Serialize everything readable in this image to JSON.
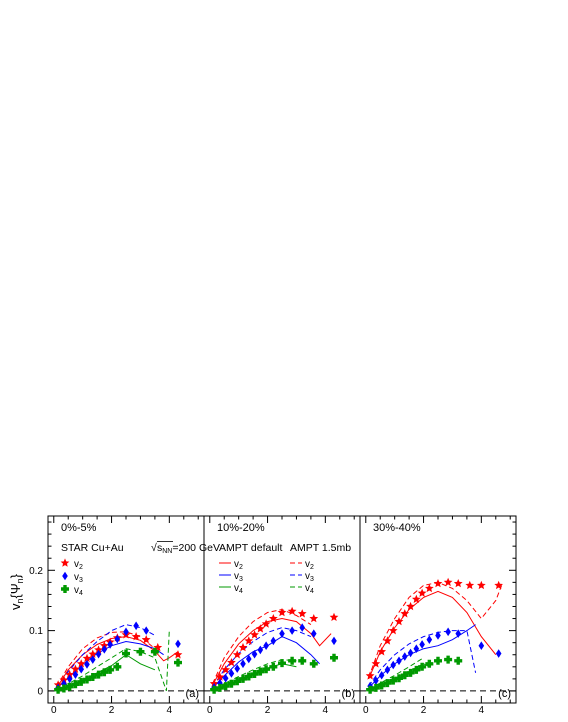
{
  "colors": {
    "v2": "#ff0000",
    "v3": "#0000ff",
    "v4": "#009900",
    "axis": "#000000",
    "ref": "#000000"
  },
  "ylabel_main": "v",
  "ylabel_sub1": "n",
  "ylabel_mid": "{Ψ",
  "ylabel_sub2": "n",
  "ylabel_end": "}",
  "yticks": [
    "0",
    "0.1",
    "0.2"
  ],
  "xticks": [
    "0",
    "2",
    "4"
  ],
  "legend": {
    "star_label": "STAR Cu+Au",
    "energy_label": "=200 GeV",
    "sqrt_s": "s",
    "sqrt_sub": "NN",
    "v_main": "v",
    "sub2": "2",
    "sub3": "3",
    "sub4": "4",
    "ampt_default": "AMPT default",
    "ampt_15": "AMPT 1.5mb"
  },
  "chart_data": [
    {
      "type": "scatter",
      "panel_tag": "(a)",
      "centrality": "0%-5%",
      "xlim": [
        -0.2,
        5.2
      ],
      "ylim": [
        -0.02,
        0.29
      ],
      "grid": false,
      "reference_line": 0,
      "series": [
        {
          "name": "v2",
          "kind": "data",
          "marker": "star",
          "x": [
            0.15,
            0.35,
            0.55,
            0.75,
            0.95,
            1.15,
            1.35,
            1.55,
            1.75,
            1.95,
            2.2,
            2.5,
            2.85,
            3.2,
            3.6,
            4.3
          ],
          "y": [
            0.01,
            0.018,
            0.027,
            0.036,
            0.045,
            0.054,
            0.061,
            0.068,
            0.075,
            0.081,
            0.088,
            0.093,
            0.09,
            0.085,
            0.072,
            0.06
          ]
        },
        {
          "name": "v3",
          "kind": "data",
          "marker": "diamond",
          "x": [
            0.15,
            0.35,
            0.55,
            0.75,
            0.95,
            1.15,
            1.35,
            1.55,
            1.75,
            1.95,
            2.2,
            2.5,
            2.85,
            3.2,
            4.3
          ],
          "y": [
            0.005,
            0.012,
            0.02,
            0.027,
            0.036,
            0.044,
            0.052,
            0.061,
            0.069,
            0.077,
            0.086,
            0.098,
            0.108,
            0.1,
            0.078
          ]
        },
        {
          "name": "v4",
          "kind": "data",
          "marker": "cross",
          "x": [
            0.15,
            0.35,
            0.55,
            0.75,
            0.95,
            1.15,
            1.35,
            1.55,
            1.75,
            1.95,
            2.2,
            2.5,
            3.0,
            3.5,
            4.3
          ],
          "y": [
            0.002,
            0.004,
            0.007,
            0.011,
            0.015,
            0.019,
            0.023,
            0.027,
            0.031,
            0.035,
            0.04,
            0.062,
            0.065,
            0.065,
            0.047
          ]
        },
        {
          "name": "v2",
          "kind": "model",
          "model": "AMPT default",
          "style": "solid",
          "x": [
            0.1,
            0.5,
            1.0,
            1.5,
            2.0,
            2.5,
            3.0,
            3.5,
            3.8,
            4.0,
            4.3
          ],
          "y": [
            0.005,
            0.035,
            0.06,
            0.077,
            0.087,
            0.09,
            0.084,
            0.066,
            0.05,
            0.055,
            0.065
          ]
        },
        {
          "name": "v3",
          "kind": "model",
          "model": "AMPT default",
          "style": "solid",
          "x": [
            0.1,
            0.5,
            1.0,
            1.5,
            2.0,
            2.5,
            3.0,
            3.5,
            3.8
          ],
          "y": [
            0.004,
            0.022,
            0.044,
            0.062,
            0.075,
            0.082,
            0.078,
            0.07,
            0.06
          ]
        },
        {
          "name": "v4",
          "kind": "model",
          "model": "AMPT default",
          "style": "solid",
          "x": [
            0.1,
            0.5,
            1.0,
            1.5,
            2.0,
            2.5,
            3.0,
            3.5
          ],
          "y": [
            0.002,
            0.008,
            0.018,
            0.03,
            0.042,
            0.06,
            0.045,
            0.035
          ]
        },
        {
          "name": "v2",
          "kind": "model",
          "model": "AMPT 1.5mb",
          "style": "dashed",
          "x": [
            0.1,
            0.5,
            1.0,
            1.5,
            2.0,
            2.5,
            3.0,
            3.5
          ],
          "y": [
            0.007,
            0.04,
            0.07,
            0.088,
            0.097,
            0.098,
            0.09,
            0.07
          ]
        },
        {
          "name": "v3",
          "kind": "model",
          "model": "AMPT 1.5mb",
          "style": "dashed",
          "x": [
            0.1,
            0.5,
            1.0,
            1.5,
            2.0,
            2.5,
            3.0,
            3.5
          ],
          "y": [
            0.006,
            0.032,
            0.06,
            0.082,
            0.1,
            0.11,
            0.105,
            0.092
          ]
        },
        {
          "name": "v4",
          "kind": "model",
          "model": "AMPT 1.5mb",
          "style": "dashed",
          "x": [
            0.1,
            0.5,
            1.0,
            1.5,
            2.0,
            2.5,
            3.0,
            3.5,
            3.9,
            4.0
          ],
          "y": [
            0.003,
            0.012,
            0.025,
            0.04,
            0.055,
            0.07,
            0.065,
            0.055,
            0.0,
            0.1
          ]
        }
      ]
    },
    {
      "type": "scatter",
      "panel_tag": "(b)",
      "centrality": "10%-20%",
      "xlim": [
        -0.2,
        5.2
      ],
      "ylim": [
        -0.02,
        0.29
      ],
      "grid": false,
      "reference_line": 0,
      "series": [
        {
          "name": "v2",
          "kind": "data",
          "marker": "star",
          "x": [
            0.15,
            0.35,
            0.55,
            0.75,
            0.95,
            1.15,
            1.35,
            1.55,
            1.75,
            1.95,
            2.2,
            2.5,
            2.85,
            3.2,
            3.6,
            4.3
          ],
          "y": [
            0.012,
            0.023,
            0.035,
            0.047,
            0.06,
            0.072,
            0.083,
            0.093,
            0.103,
            0.111,
            0.12,
            0.13,
            0.132,
            0.128,
            0.12,
            0.122
          ]
        },
        {
          "name": "v3",
          "kind": "data",
          "marker": "diamond",
          "x": [
            0.15,
            0.35,
            0.55,
            0.75,
            0.95,
            1.15,
            1.35,
            1.55,
            1.75,
            1.95,
            2.2,
            2.5,
            2.85,
            3.2,
            3.6,
            4.3
          ],
          "y": [
            0.006,
            0.013,
            0.021,
            0.029,
            0.037,
            0.045,
            0.053,
            0.061,
            0.068,
            0.075,
            0.083,
            0.095,
            0.1,
            0.105,
            0.095,
            0.083
          ]
        },
        {
          "name": "v4",
          "kind": "data",
          "marker": "cross",
          "x": [
            0.15,
            0.35,
            0.55,
            0.75,
            0.95,
            1.15,
            1.35,
            1.55,
            1.75,
            1.95,
            2.2,
            2.5,
            2.85,
            3.2,
            3.6,
            4.3
          ],
          "y": [
            0.002,
            0.005,
            0.008,
            0.012,
            0.016,
            0.02,
            0.024,
            0.028,
            0.032,
            0.036,
            0.04,
            0.046,
            0.05,
            0.05,
            0.045,
            0.055
          ]
        },
        {
          "name": "v2",
          "kind": "model",
          "model": "AMPT default",
          "style": "solid",
          "x": [
            0.1,
            0.5,
            1.0,
            1.5,
            2.0,
            2.5,
            3.0,
            3.5,
            3.8,
            4.2
          ],
          "y": [
            0.01,
            0.045,
            0.078,
            0.1,
            0.115,
            0.12,
            0.115,
            0.095,
            0.075,
            0.095
          ]
        },
        {
          "name": "v3",
          "kind": "model",
          "model": "AMPT default",
          "style": "solid",
          "x": [
            0.1,
            0.5,
            1.0,
            1.5,
            2.0,
            2.5,
            3.0,
            3.5,
            3.8
          ],
          "y": [
            0.005,
            0.025,
            0.048,
            0.065,
            0.075,
            0.09,
            0.08,
            0.06,
            0.045
          ]
        },
        {
          "name": "v4",
          "kind": "model",
          "model": "AMPT default",
          "style": "solid",
          "x": [
            0.1,
            0.5,
            1.0,
            1.5,
            2.0,
            2.5,
            3.0
          ],
          "y": [
            0.002,
            0.008,
            0.018,
            0.028,
            0.038,
            0.045,
            0.04
          ]
        },
        {
          "name": "v2",
          "kind": "model",
          "model": "AMPT 1.5mb",
          "style": "dashed",
          "x": [
            0.1,
            0.5,
            1.0,
            1.5,
            2.0,
            2.5,
            3.0,
            3.5
          ],
          "y": [
            0.012,
            0.055,
            0.09,
            0.115,
            0.13,
            0.135,
            0.125,
            0.11
          ]
        },
        {
          "name": "v3",
          "kind": "model",
          "model": "AMPT 1.5mb",
          "style": "dashed",
          "x": [
            0.1,
            0.5,
            1.0,
            1.5,
            2.0,
            2.5,
            3.0,
            3.5
          ],
          "y": [
            0.007,
            0.035,
            0.062,
            0.082,
            0.097,
            0.105,
            0.1,
            0.09
          ]
        },
        {
          "name": "v4",
          "kind": "model",
          "model": "AMPT 1.5mb",
          "style": "dashed",
          "x": [
            0.1,
            0.5,
            1.0,
            1.5,
            2.0,
            2.5,
            3.0
          ],
          "y": [
            0.003,
            0.012,
            0.024,
            0.035,
            0.045,
            0.052,
            0.05
          ]
        }
      ]
    },
    {
      "type": "scatter",
      "panel_tag": "(c)",
      "centrality": "30%-40%",
      "xlim": [
        -0.2,
        5.2
      ],
      "ylim": [
        -0.02,
        0.29
      ],
      "grid": false,
      "reference_line": 0,
      "series": [
        {
          "name": "v2",
          "kind": "data",
          "marker": "star",
          "x": [
            0.15,
            0.35,
            0.55,
            0.75,
            0.95,
            1.15,
            1.35,
            1.55,
            1.75,
            1.95,
            2.2,
            2.5,
            2.85,
            3.2,
            3.6,
            4.0,
            4.6
          ],
          "y": [
            0.025,
            0.045,
            0.065,
            0.083,
            0.1,
            0.115,
            0.128,
            0.14,
            0.152,
            0.162,
            0.17,
            0.178,
            0.18,
            0.178,
            0.175,
            0.175,
            0.175
          ]
        },
        {
          "name": "v3",
          "kind": "data",
          "marker": "diamond",
          "x": [
            0.15,
            0.35,
            0.55,
            0.75,
            0.95,
            1.15,
            1.35,
            1.55,
            1.75,
            1.95,
            2.2,
            2.5,
            2.85,
            3.2,
            4.0,
            4.6
          ],
          "y": [
            0.008,
            0.017,
            0.026,
            0.035,
            0.043,
            0.05,
            0.057,
            0.063,
            0.07,
            0.077,
            0.085,
            0.092,
            0.098,
            0.095,
            0.075,
            0.062
          ]
        },
        {
          "name": "v4",
          "kind": "data",
          "marker": "cross",
          "x": [
            0.15,
            0.35,
            0.55,
            0.75,
            0.95,
            1.15,
            1.35,
            1.55,
            1.75,
            1.95,
            2.2,
            2.5,
            2.85,
            3.2
          ],
          "y": [
            0.002,
            0.005,
            0.009,
            0.013,
            0.017,
            0.021,
            0.026,
            0.03,
            0.035,
            0.04,
            0.045,
            0.05,
            0.052,
            0.05
          ]
        },
        {
          "name": "v2",
          "kind": "model",
          "model": "AMPT default",
          "style": "solid",
          "x": [
            0.1,
            0.5,
            1.0,
            1.5,
            2.0,
            2.5,
            3.0,
            3.5,
            4.0,
            4.5
          ],
          "y": [
            0.02,
            0.065,
            0.105,
            0.135,
            0.155,
            0.165,
            0.155,
            0.13,
            0.09,
            0.06
          ]
        },
        {
          "name": "v3",
          "kind": "model",
          "model": "AMPT default",
          "style": "solid",
          "x": [
            0.1,
            0.5,
            1.0,
            1.5,
            2.0,
            2.5,
            3.0,
            3.5,
            3.8
          ],
          "y": [
            0.005,
            0.025,
            0.045,
            0.06,
            0.07,
            0.075,
            0.085,
            0.1,
            0.11
          ]
        },
        {
          "name": "v4",
          "kind": "model",
          "model": "AMPT default",
          "style": "solid",
          "x": [
            0.1,
            0.5,
            1.0,
            1.5,
            2.0,
            2.2
          ],
          "y": [
            0.002,
            0.01,
            0.02,
            0.032,
            0.045,
            0.04
          ]
        },
        {
          "name": "v2",
          "kind": "model",
          "model": "AMPT 1.5mb",
          "style": "dashed",
          "x": [
            0.1,
            0.5,
            1.0,
            1.5,
            2.0,
            2.5,
            3.0,
            3.5,
            4.0,
            4.5,
            4.7
          ],
          "y": [
            0.022,
            0.075,
            0.12,
            0.155,
            0.175,
            0.18,
            0.17,
            0.15,
            0.12,
            0.15,
            0.175
          ]
        },
        {
          "name": "v3",
          "kind": "model",
          "model": "AMPT 1.5mb",
          "style": "dashed",
          "x": [
            0.1,
            0.5,
            1.0,
            1.5,
            2.0,
            2.5,
            3.0,
            3.5,
            3.8
          ],
          "y": [
            0.008,
            0.035,
            0.06,
            0.078,
            0.09,
            0.097,
            0.1,
            0.1,
            0.03
          ]
        },
        {
          "name": "v4",
          "kind": "model",
          "model": "AMPT 1.5mb",
          "style": "dashed",
          "x": [
            0.1,
            0.5,
            1.0,
            1.5,
            2.0
          ],
          "y": [
            0.003,
            0.013,
            0.026,
            0.04,
            0.055
          ]
        }
      ]
    }
  ]
}
